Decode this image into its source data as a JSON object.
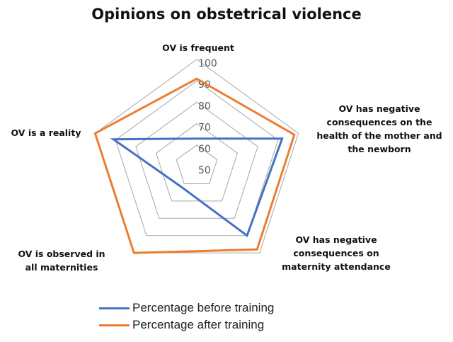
{
  "chart_data": {
    "type": "radar",
    "title": "Opinions on obstetrical violence",
    "categories": [
      "OV is frequent",
      "OV has negative consequences on the health of the mother and the newborn",
      "OV has negative consequences on maternity attendance",
      "OV is observed in all maternities",
      "OV is a reality"
    ],
    "category_lines": [
      [
        "OV is frequent"
      ],
      [
        "OV has negative",
        "consequences on the",
        "health of the mother and",
        "the newborn"
      ],
      [
        "OV has negative",
        "consequences on",
        "maternity attendance"
      ],
      [
        "OV is observed in",
        "all maternities"
      ],
      [
        "OV is a reality"
      ]
    ],
    "range": [
      50,
      100
    ],
    "ticks": [
      50,
      60,
      70,
      80,
      90,
      100
    ],
    "grid": true,
    "legend_position": "bottom",
    "series": [
      {
        "name": "Percentage before training",
        "color": "#4472C4",
        "values": [
          63,
          92,
          90,
          62,
          91
        ]
      },
      {
        "name": "Percentage after training",
        "color": "#ED7D31",
        "values": [
          91,
          98,
          98,
          100,
          100
        ]
      }
    ]
  }
}
